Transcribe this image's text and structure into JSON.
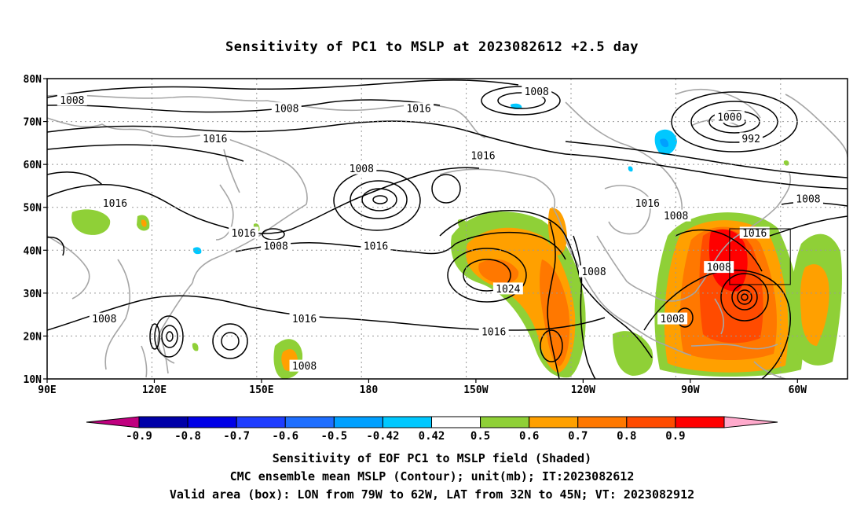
{
  "title": "Sensitivity of PC1 to MSLP at 2023082612 +2.5 day",
  "map": {
    "lat_ticks": [
      {
        "lat": 80,
        "label": "80N"
      },
      {
        "lat": 70,
        "label": "70N"
      },
      {
        "lat": 60,
        "label": "60N"
      },
      {
        "lat": 50,
        "label": "50N"
      },
      {
        "lat": 40,
        "label": "40N"
      },
      {
        "lat": 30,
        "label": "30N"
      },
      {
        "lat": 20,
        "label": "20N"
      },
      {
        "lat": 10,
        "label": "10N"
      }
    ],
    "lon_ticks": [
      {
        "lon": 90,
        "label": "90E"
      },
      {
        "lon": 120,
        "label": "120E"
      },
      {
        "lon": 150,
        "label": "150E"
      },
      {
        "lon": 180,
        "label": "180"
      },
      {
        "lon": 210,
        "label": "150W"
      },
      {
        "lon": 240,
        "label": "120W"
      },
      {
        "lon": 270,
        "label": "90W"
      },
      {
        "lon": 300,
        "label": "60W"
      }
    ],
    "valid_box": {
      "lon_min": 281,
      "lon_max": 298,
      "lat_min": 32,
      "lat_max": 45
    },
    "contour_labels": [
      {
        "text": "1008",
        "lon": 97,
        "lat": 75
      },
      {
        "text": "1008",
        "lon": 157,
        "lat": 73
      },
      {
        "text": "1016",
        "lon": 137,
        "lat": 66
      },
      {
        "text": "1016",
        "lon": 109,
        "lat": 51
      },
      {
        "text": "1008",
        "lon": 178,
        "lat": 59
      },
      {
        "text": "1016",
        "lon": 194,
        "lat": 73
      },
      {
        "text": "1008",
        "lon": 227,
        "lat": 77
      },
      {
        "text": "1016",
        "lon": 212,
        "lat": 62
      },
      {
        "text": "1016",
        "lon": 145,
        "lat": 44
      },
      {
        "text": "1008",
        "lon": 154,
        "lat": 41
      },
      {
        "text": "1016",
        "lon": 182,
        "lat": 41
      },
      {
        "text": "1008",
        "lon": 266,
        "lat": 48
      },
      {
        "text": "1016",
        "lon": 258,
        "lat": 51
      },
      {
        "text": "1000",
        "lon": 281,
        "lat": 71
      },
      {
        "text": "992",
        "lon": 287,
        "lat": 66
      },
      {
        "text": "1008",
        "lon": 303,
        "lat": 52
      },
      {
        "text": "1016",
        "lon": 288,
        "lat": 44
      },
      {
        "text": "1008",
        "lon": 278,
        "lat": 36
      },
      {
        "text": "1008",
        "lon": 243,
        "lat": 35
      },
      {
        "text": "1024",
        "lon": 219,
        "lat": 31
      },
      {
        "text": "1016",
        "lon": 162,
        "lat": 24
      },
      {
        "text": "1016",
        "lon": 215,
        "lat": 21
      },
      {
        "text": "1008",
        "lon": 106,
        "lat": 24
      },
      {
        "text": "1008",
        "lon": 162,
        "lat": 13
      },
      {
        "text": "1008",
        "lon": 265,
        "lat": 24
      }
    ]
  },
  "colorbar": {
    "labels": [
      "-0.9",
      "-0.8",
      "-0.7",
      "-0.6",
      "-0.5",
      "-0.42",
      "0.42",
      "0.5",
      "0.6",
      "0.7",
      "0.8",
      "0.9"
    ],
    "colors": {
      "under": "#c0007f",
      "b1": "#0000a8",
      "b2": "#0000e6",
      "b3": "#1e3cff",
      "b4": "#1e6eff",
      "b5": "#00a0ff",
      "b6": "#00c8ff",
      "white": "#ffffff",
      "p1": "#8fd037",
      "p2": "#ffa000",
      "p3": "#ff7800",
      "p4": "#ff4b00",
      "p5": "#ff0000",
      "over": "#ffaacc"
    }
  },
  "caption": {
    "line1": "Sensitivity of EOF PC1 to MSLP field (Shaded)",
    "line2": "CMC ensemble mean MSLP (Contour); unit(mb); IT:2023082612",
    "line3": "Valid area (box): LON from 79W to 62W, LAT from 32N to 45N; VT: 2023082912"
  }
}
